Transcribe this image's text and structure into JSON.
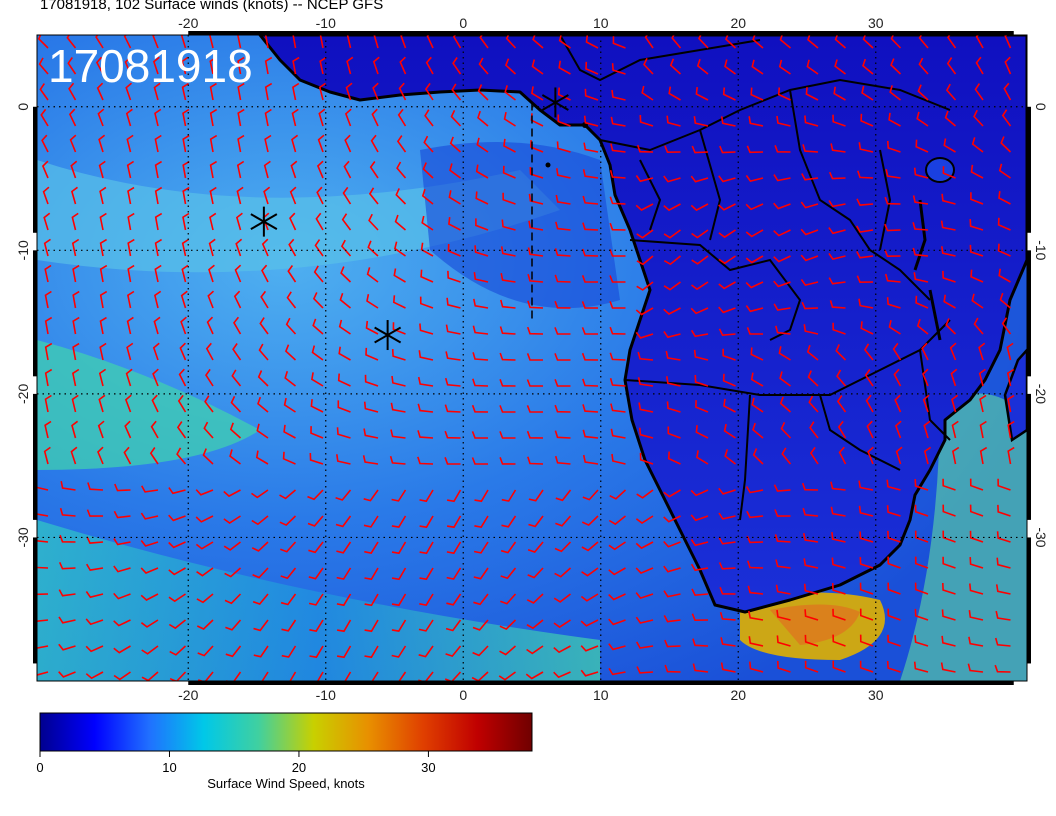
{
  "title": "17081918, 102 Surface winds (knots) -- NCEP GFS",
  "timestamp_overlay": "17081918",
  "map": {
    "lon_range": [
      -31,
      41
    ],
    "lat_range": [
      -40,
      5
    ],
    "lon_ticks": [
      "-20",
      "-10",
      "0",
      "10",
      "20",
      "30"
    ],
    "lon_tick_values": [
      -20,
      -10,
      0,
      10,
      20,
      30
    ],
    "lat_ticks": [
      "0",
      "-10",
      "-20",
      "-30"
    ],
    "lat_tick_values": [
      0,
      -10,
      -20,
      -30
    ],
    "markers": [
      {
        "symbol": "asterisk",
        "lon": -14.5,
        "lat": -8.0
      },
      {
        "symbol": "asterisk",
        "lon": -5.5,
        "lat": -15.9
      },
      {
        "symbol": "asterisk",
        "lon": 6.7,
        "lat": 0.3
      }
    ],
    "dashed_track": [
      [
        5.0,
        0.3
      ],
      [
        5.0,
        -15.0
      ]
    ],
    "barb_color": "#ff0000",
    "coast_color": "#000000"
  },
  "colorbar": {
    "label": "Surface Wind Speed, knots",
    "ticks": [
      "0",
      "10",
      "20",
      "30"
    ],
    "tick_values": [
      0,
      10,
      20,
      30
    ],
    "range": [
      0,
      38
    ],
    "colors": [
      "#00008f",
      "#0000ff",
      "#2070ff",
      "#00c8e8",
      "#40d0a0",
      "#c8d000",
      "#e89000",
      "#e04000",
      "#c00000",
      "#700000"
    ]
  }
}
